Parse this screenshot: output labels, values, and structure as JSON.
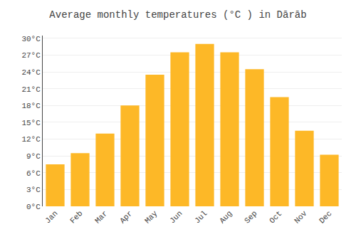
{
  "chart_data": {
    "type": "bar",
    "title": "Average monthly temperatures (°C ) in Dārāb",
    "categories": [
      "Jan",
      "Feb",
      "Mar",
      "Apr",
      "May",
      "Jun",
      "Jul",
      "Aug",
      "Sep",
      "Oct",
      "Nov",
      "Dec"
    ],
    "values": [
      7.5,
      9.5,
      13.0,
      18.0,
      23.5,
      27.5,
      29.0,
      27.5,
      24.5,
      19.5,
      13.5,
      9.2
    ],
    "color": "#FDB827",
    "ylim": [
      0,
      30.5
    ],
    "yticks": [
      {
        "value": 0,
        "label": "0°C"
      },
      {
        "value": 3,
        "label": "3°C"
      },
      {
        "value": 6,
        "label": "6°C"
      },
      {
        "value": 9,
        "label": "9°C"
      },
      {
        "value": 12,
        "label": "12°C"
      },
      {
        "value": 15,
        "label": "15°C"
      },
      {
        "value": 18,
        "label": "18°C"
      },
      {
        "value": 21,
        "label": "21°C"
      },
      {
        "value": 24,
        "label": "24°C"
      },
      {
        "value": 27,
        "label": "27°C"
      },
      {
        "value": 30,
        "label": "30°C"
      }
    ],
    "grid": true
  }
}
